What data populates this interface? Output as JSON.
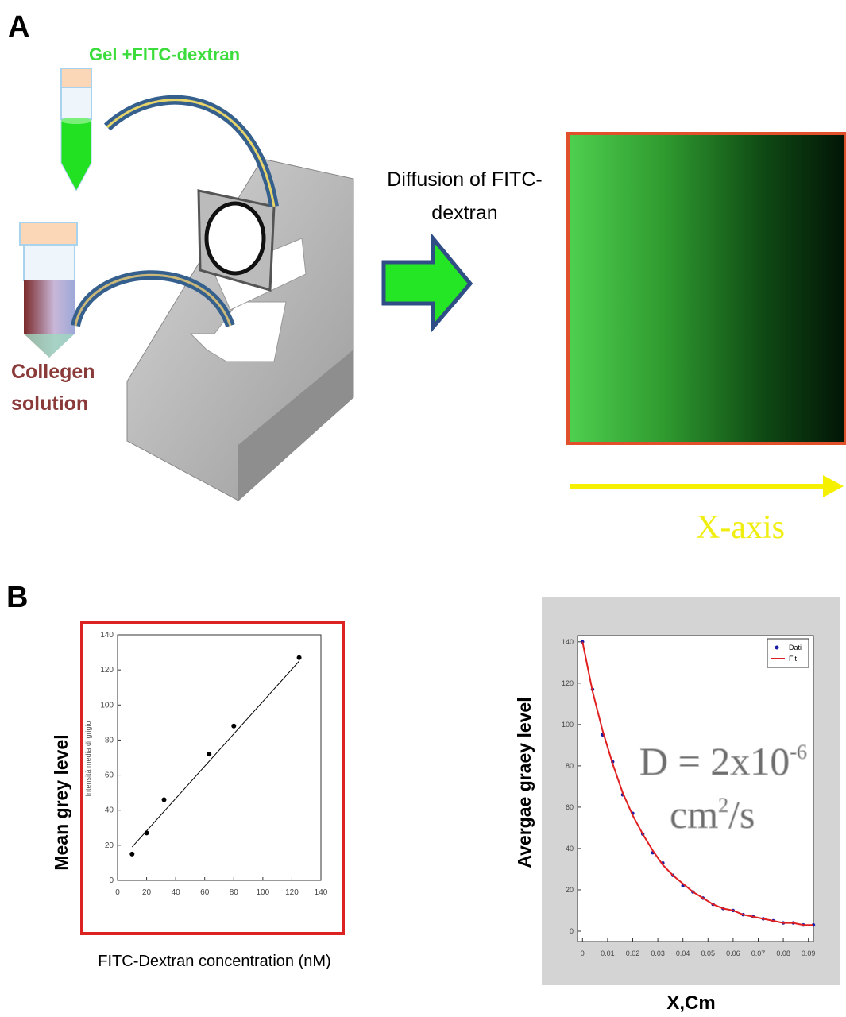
{
  "panel_a": {
    "label": "A",
    "gel_label": "Gel +FITC-dextran",
    "collagen_label": [
      "Collegen",
      "solution"
    ],
    "diffusion_label": [
      "Diffusion of FITC-",
      "dextran"
    ],
    "x_axis_label": "X-axis"
  },
  "panel_b": {
    "label": "B"
  },
  "chart_data": [
    {
      "type": "scatter",
      "y_label": "Mean grey  level",
      "inner_y_label": "Intensità media di grigio",
      "x_label": "FITC-Dextran concentration (nM)",
      "x": [
        10,
        20,
        32,
        63,
        80,
        125
      ],
      "values": [
        15,
        27,
        46,
        72,
        88,
        127
      ],
      "color": "#000000",
      "fit": {
        "x": [
          10,
          125
        ],
        "values": [
          19,
          125
        ],
        "color": "#000000"
      },
      "xlim": [
        0,
        140
      ],
      "ylim": [
        0,
        140
      ],
      "xticks": [
        0,
        20,
        40,
        60,
        80,
        100,
        120,
        140
      ],
      "yticks": [
        0,
        20,
        40,
        60,
        80,
        100,
        120,
        140
      ],
      "frame_color": "#dd2222"
    },
    {
      "type": "line",
      "y_label": "Avergae graey level",
      "x_label": "X,Cm",
      "x": [
        0,
        0.004,
        0.008,
        0.012,
        0.016,
        0.02,
        0.024,
        0.028,
        0.032,
        0.036,
        0.04,
        0.044,
        0.048,
        0.052,
        0.056,
        0.06,
        0.064,
        0.068,
        0.072,
        0.076,
        0.08,
        0.084,
        0.088,
        0.092
      ],
      "series": [
        {
          "name": "Dati",
          "color": "#1a1aa8",
          "marker": "dot",
          "values": [
            140,
            117,
            95,
            82,
            66,
            57,
            47,
            38,
            33,
            27,
            22,
            19,
            16,
            13,
            11,
            10,
            8,
            7,
            6,
            5,
            4,
            4,
            3,
            3
          ]
        },
        {
          "name": "Fit",
          "color": "#e02020",
          "values": [
            140,
            116,
            97,
            81,
            67,
            56,
            47,
            39,
            32,
            27,
            23,
            19,
            16,
            13,
            11,
            10,
            8,
            7,
            6,
            5,
            4,
            4,
            3,
            3
          ]
        }
      ],
      "xlim": [
        -0.002,
        0.092
      ],
      "ylim": [
        -5,
        143
      ],
      "xticks": [
        0,
        0.01,
        0.02,
        0.03,
        0.04,
        0.05,
        0.06,
        0.07,
        0.08,
        0.09
      ],
      "yticks": [
        0,
        20,
        40,
        60,
        80,
        100,
        120,
        140
      ],
      "annotation": {
        "base": "D = 2x10",
        "exp": "-6",
        "unit": "cm",
        "unit_exp": "2",
        "unit_rest": "/s"
      },
      "legend": "upper right",
      "background": "#d4d4d4"
    }
  ]
}
